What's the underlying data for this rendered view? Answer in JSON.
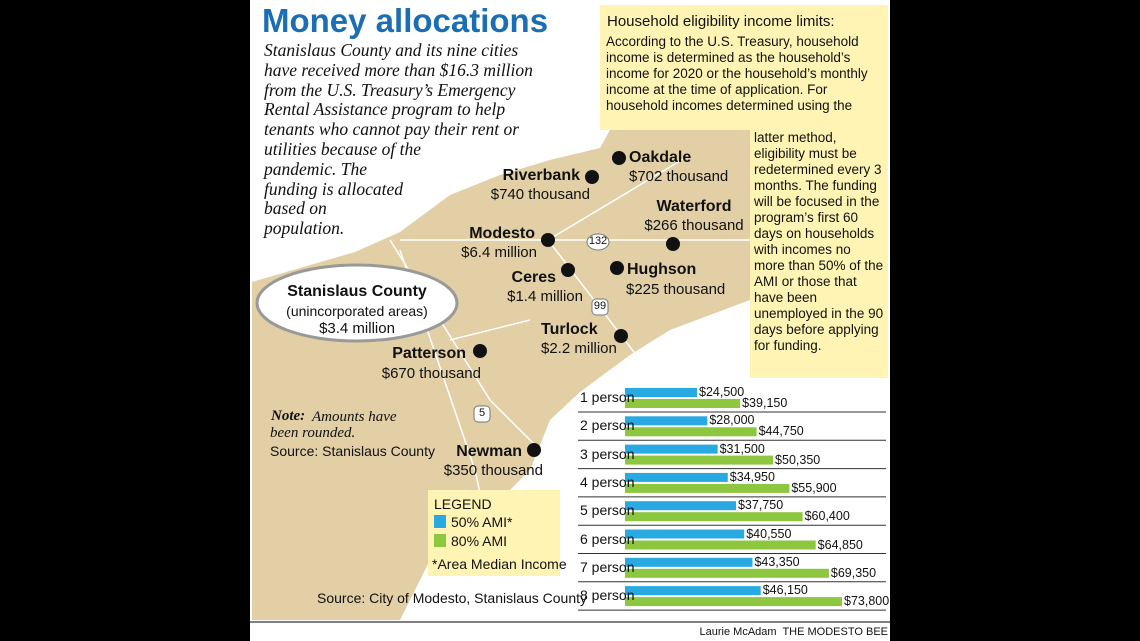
{
  "header": {
    "title": "Money allocations",
    "intro_lines": [
      "Stanislaus County and its nine cities",
      "have received more than $16.3 million",
      "from the U.S. Treasury’s Emergency",
      "Rental Assistance program to help",
      "tenants who cannot pay their rent or",
      "utilities because of the",
      "pandemic. The",
      "funding is allocated",
      "based on",
      "population."
    ]
  },
  "map": {
    "cities": [
      {
        "name": "Oakdale",
        "amount": "$702 thousand"
      },
      {
        "name": "Riverbank",
        "amount": "$740 thousand"
      },
      {
        "name": "Waterford",
        "amount": "$266 thousand"
      },
      {
        "name": "Modesto",
        "amount": "$6.4 million"
      },
      {
        "name": "Ceres",
        "amount": "$1.4 million"
      },
      {
        "name": "Hughson",
        "amount": "$225 thousand"
      },
      {
        "name": "Turlock",
        "amount": "$2.2 million"
      },
      {
        "name": "Patterson",
        "amount": "$670 thousand"
      },
      {
        "name": "Newman",
        "amount": "$350 thousand"
      }
    ],
    "county": {
      "name": "Stanislaus County",
      "note": "(unincorporated areas)",
      "amount": "$3.4 million"
    },
    "routes": [
      "132",
      "99",
      "5"
    ],
    "note_label": "Note:",
    "note_text": "Amounts have been rounded.",
    "source": "Source: Stanislaus County"
  },
  "sidebar": {
    "title": "Household eligibility income limits:",
    "text_top": "According to the U.S. Treasury, household income is determined as the household’s income for 2020 or the household’s monthly income at the time of application. For household incomes determined using the",
    "text_bottom": "latter method, eligibility must be redetermined every 3 months. The funding will be focused in the program’s first 60 days on households with incomes no more than 50% of the AMI or those that have been unemployed in the 90 days before applying for funding."
  },
  "chart_data": {
    "type": "bar",
    "orientation": "horizontal",
    "categories": [
      "1 person",
      "2 person",
      "3 person",
      "4 person",
      "5 person",
      "6 person",
      "7 person",
      "8 person"
    ],
    "series": [
      {
        "name": "50% AMI*",
        "color": "#29a9e1",
        "values": [
          24500,
          28000,
          31500,
          34950,
          37750,
          40550,
          43350,
          46150
        ],
        "value_labels": [
          "$24,500",
          "$28,000",
          "$31,500",
          "$34,950",
          "$37,750",
          "$40,550",
          "$43,350",
          "$46,150"
        ]
      },
      {
        "name": "80% AMI",
        "color": "#8dc63f",
        "values": [
          39150,
          44750,
          50350,
          55900,
          60400,
          64850,
          69350,
          73800
        ],
        "value_labels": [
          "$39,150",
          "$44,750",
          "$50,350",
          "$55,900",
          "$60,400",
          "$64,850",
          "$69,350",
          "$73,800"
        ]
      }
    ],
    "legend_title": "LEGEND",
    "legend_note": "*Area Median Income",
    "source": "Source: City of Modesto, Stanislaus County"
  },
  "credit": "Laurie McAdam  THE MODESTO BEE"
}
